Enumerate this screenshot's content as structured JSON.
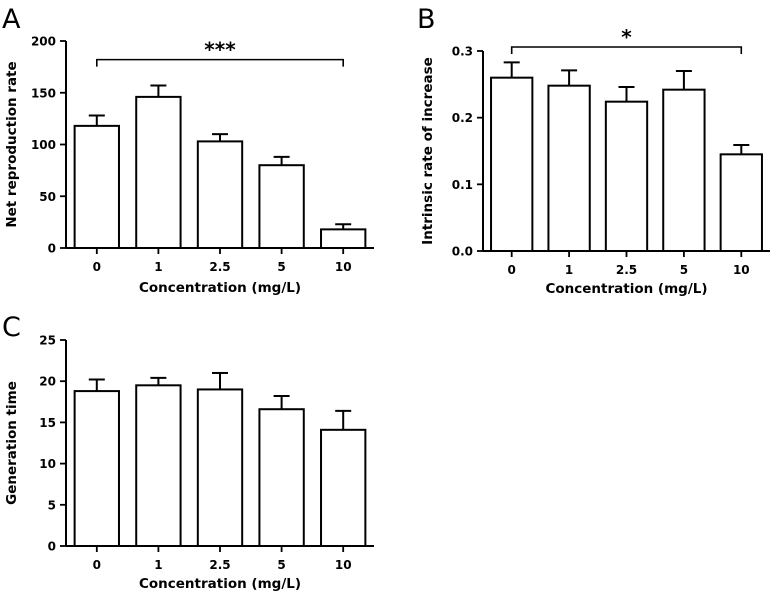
{
  "chart_data": [
    {
      "panel": "A",
      "type": "bar",
      "categories": [
        "0",
        "1",
        "2.5",
        "5",
        "10"
      ],
      "values": [
        118,
        146,
        103,
        80,
        18
      ],
      "errors": [
        10,
        11,
        7,
        8,
        5
      ],
      "ylabel": "Net reproduction rate",
      "xlabel": "Concentration (mg/L)",
      "ylim": [
        0,
        200
      ],
      "yticks": [
        0,
        50,
        100,
        150,
        200
      ],
      "ytick_labels": [
        "0",
        "50",
        "100",
        "150",
        "200"
      ],
      "significance": {
        "label": "***",
        "from": 0,
        "to": 4,
        "y": 182
      }
    },
    {
      "panel": "B",
      "type": "bar",
      "categories": [
        "0",
        "1",
        "2.5",
        "5",
        "10"
      ],
      "values": [
        0.26,
        0.248,
        0.224,
        0.242,
        0.145
      ],
      "errors": [
        0.023,
        0.023,
        0.022,
        0.028,
        0.014
      ],
      "ylabel": "Intrinsic rate of increase",
      "xlabel": "Concentration (mg/L)",
      "ylim": [
        0,
        0.3
      ],
      "yticks": [
        0,
        0.1,
        0.2,
        0.3
      ],
      "ytick_labels": [
        "0.0",
        "0.1",
        "0.2",
        "0.3"
      ],
      "significance": {
        "label": "*",
        "from": 0,
        "to": 4,
        "y": 0.306
      }
    },
    {
      "panel": "C",
      "type": "bar",
      "categories": [
        "0",
        "1",
        "2.5",
        "5",
        "10"
      ],
      "values": [
        18.8,
        19.5,
        19.0,
        16.6,
        14.1
      ],
      "errors": [
        1.4,
        0.9,
        2.0,
        1.6,
        2.3
      ],
      "ylabel": "Generation time",
      "xlabel": "Concentration (mg/L)",
      "ylim": [
        0,
        25
      ],
      "yticks": [
        0,
        5,
        10,
        15,
        20,
        25
      ],
      "ytick_labels": [
        "0",
        "5",
        "10",
        "15",
        "20",
        "25"
      ],
      "significance": null
    }
  ]
}
